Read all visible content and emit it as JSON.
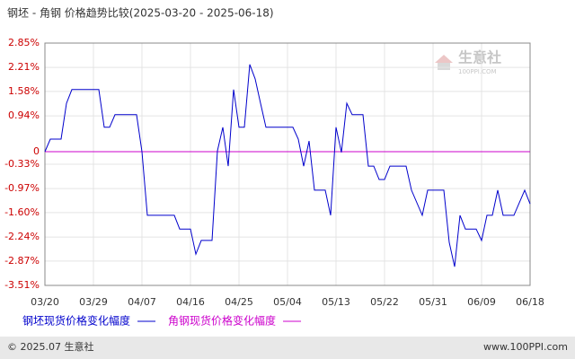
{
  "chart_data": {
    "type": "line",
    "title": "钢坯 - 角钢 价格趋势比较(2025-03-20 - 2025-06-18)",
    "x": [
      "03/20",
      "03/21",
      "03/23",
      "03/24",
      "03/25",
      "03/30",
      "03/31",
      "04/01",
      "04/02",
      "04/06",
      "04/07",
      "04/08",
      "04/13",
      "04/14",
      "04/16",
      "04/17",
      "04/18",
      "04/20",
      "04/21",
      "04/22",
      "04/23",
      "04/24",
      "04/25",
      "04/26",
      "04/27",
      "04/28",
      "04/29",
      "04/30",
      "05/05",
      "05/06",
      "05/07",
      "05/08",
      "05/09",
      "05/11",
      "05/12",
      "05/13",
      "05/14",
      "05/15",
      "05/16",
      "05/18",
      "05/19",
      "05/20",
      "05/21",
      "05/22",
      "05/23",
      "05/26",
      "05/27",
      "05/29",
      "05/30",
      "06/02",
      "06/03",
      "06/04",
      "06/05",
      "06/06",
      "06/08",
      "06/09",
      "06/10",
      "06/11",
      "06/12",
      "06/13",
      "06/15",
      "06/17",
      "06/18"
    ],
    "series": [
      {
        "name": "钢坯现货价格变化幅度",
        "color": "#0000cc",
        "values": [
          0,
          0.33,
          0.33,
          1.27,
          1.63,
          1.63,
          0.64,
          0.64,
          0.97,
          0.97,
          0,
          -1.67,
          -1.67,
          -2.03,
          -2.03,
          -2.69,
          -2.33,
          -2.33,
          0.02,
          0.64,
          -0.38,
          1.63,
          0.64,
          0.64,
          2.29,
          1.91,
          1.27,
          0.64,
          0.64,
          0.33,
          -0.38,
          0.28,
          -1.01,
          -1.01,
          -1.67,
          0.64,
          -0.02,
          1.27,
          0.97,
          0.97,
          -0.38,
          -0.38,
          -0.73,
          -0.73,
          -0.38,
          -0.38,
          -1.01,
          -1.67,
          -1.01,
          -1.01,
          -2.38,
          -3.02,
          -1.67,
          -2.03,
          -2.03,
          -2.33,
          -1.67,
          -1.67,
          -1.01,
          -1.67,
          -1.67,
          -1.01,
          -1.37
        ]
      },
      {
        "name": "角钢现货价格变化幅度",
        "color": "#cc00cc",
        "values": [
          0,
          0,
          0,
          0,
          0,
          0,
          0,
          0,
          0,
          0,
          0,
          0,
          0,
          0,
          0,
          0,
          0,
          0,
          0,
          0,
          0,
          0,
          0,
          0,
          0,
          0,
          0,
          0,
          0,
          0,
          0,
          0,
          0,
          0,
          0,
          0,
          0,
          0,
          0,
          0,
          0,
          0,
          0,
          0,
          0,
          0,
          0,
          0,
          0,
          0,
          0,
          0,
          0,
          0,
          0,
          0,
          0,
          0,
          0,
          0,
          0,
          0,
          0
        ]
      }
    ],
    "xticks": [
      "03/20",
      "03/29",
      "04/07",
      "04/16",
      "04/25",
      "05/04",
      "05/13",
      "05/22",
      "05/31",
      "06/09",
      "06/18"
    ],
    "ylim": [
      -3.51,
      2.85
    ],
    "yticks": [
      {
        "value": 2.85,
        "label": "2.85%"
      },
      {
        "value": 2.21,
        "label": "2.21%"
      },
      {
        "value": 1.58,
        "label": "1.58%"
      },
      {
        "value": 0.94,
        "label": "0.94%"
      },
      {
        "value": 0,
        "label": "0"
      },
      {
        "value": -0.33,
        "label": "-0.33%"
      },
      {
        "value": -0.97,
        "label": "-0.97%"
      },
      {
        "value": -1.6,
        "label": "-1.60%"
      },
      {
        "value": -2.24,
        "label": "-2.24%"
      },
      {
        "value": -2.87,
        "label": "-2.87%"
      },
      {
        "value": -3.51,
        "label": "-3.51%"
      }
    ],
    "grid": true
  },
  "watermark": {
    "name": "生意社",
    "site": "100PPI.COM"
  },
  "footer": {
    "left": "© 2025.07 生意社",
    "right": "www.100PPI.com"
  }
}
